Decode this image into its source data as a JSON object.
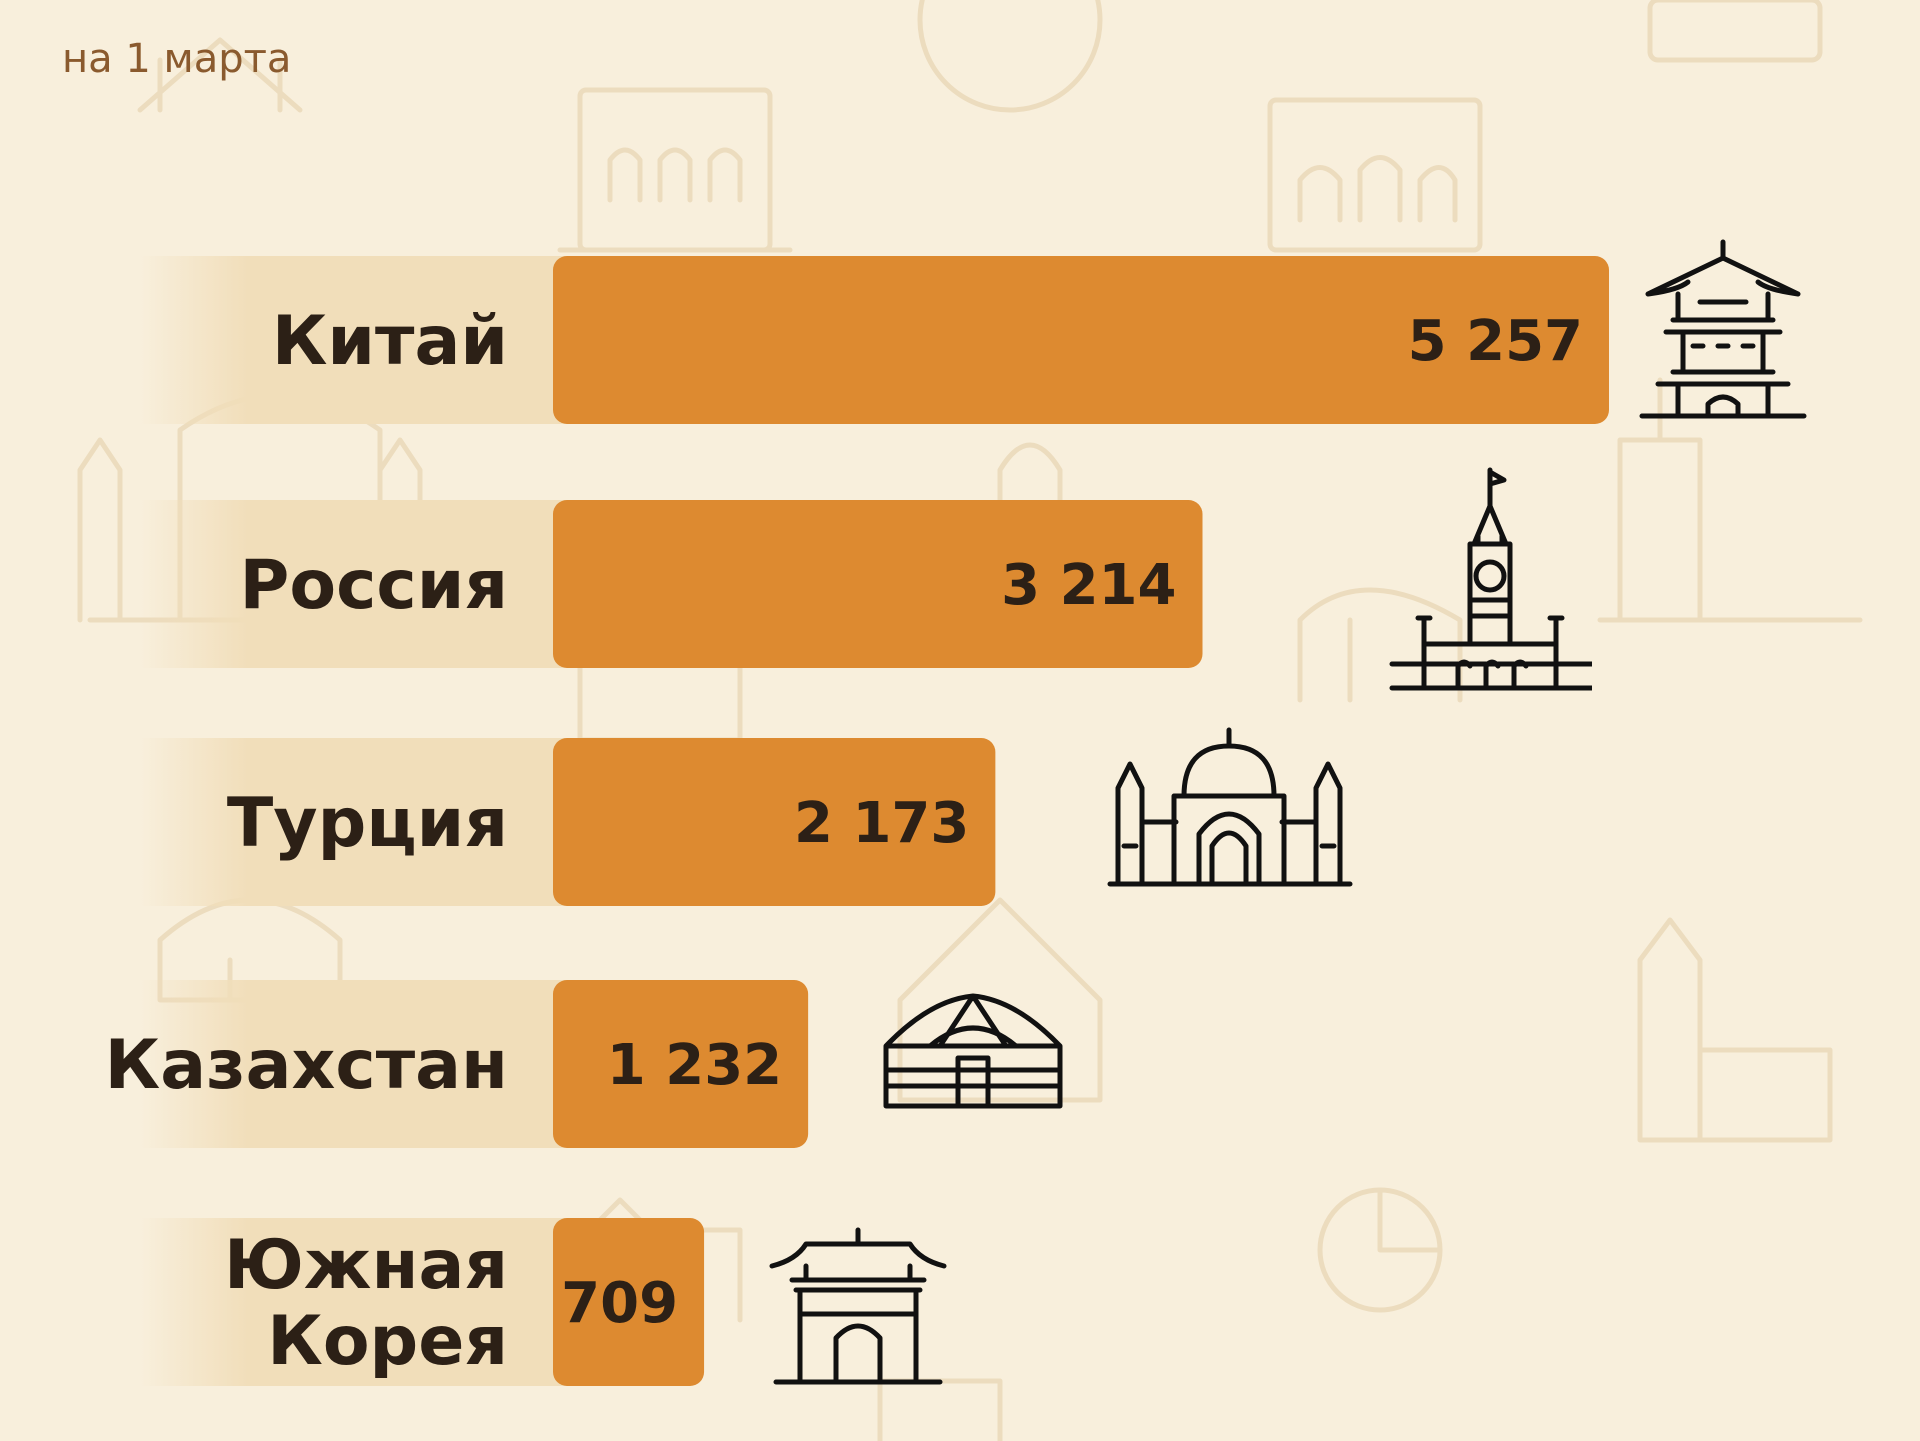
{
  "subtitle": "на 1 марта",
  "colors": {
    "bar": "#dd8a30",
    "background": "#f8efdc",
    "label_band": "#f1deba"
  },
  "chart_data": {
    "type": "bar",
    "orientation": "horizontal",
    "categories": [
      "Китай",
      "Россия",
      "Турция",
      "Казахстан",
      "Южная Корея"
    ],
    "category_lines": [
      [
        "Китай"
      ],
      [
        "Россия"
      ],
      [
        "Турция"
      ],
      [
        "Казахстан"
      ],
      [
        "Южная",
        "Корея"
      ]
    ],
    "values": [
      5257,
      3214,
      2173,
      1232,
      709
    ],
    "value_labels": [
      "5 257",
      "3 214",
      "2 173",
      "1 232",
      "709"
    ],
    "icons": [
      "pagoda-icon",
      "kremlin-tower-icon",
      "mosque-icon",
      "yurt-icon",
      "korean-gate-icon"
    ],
    "grid": false,
    "legend": "none"
  }
}
